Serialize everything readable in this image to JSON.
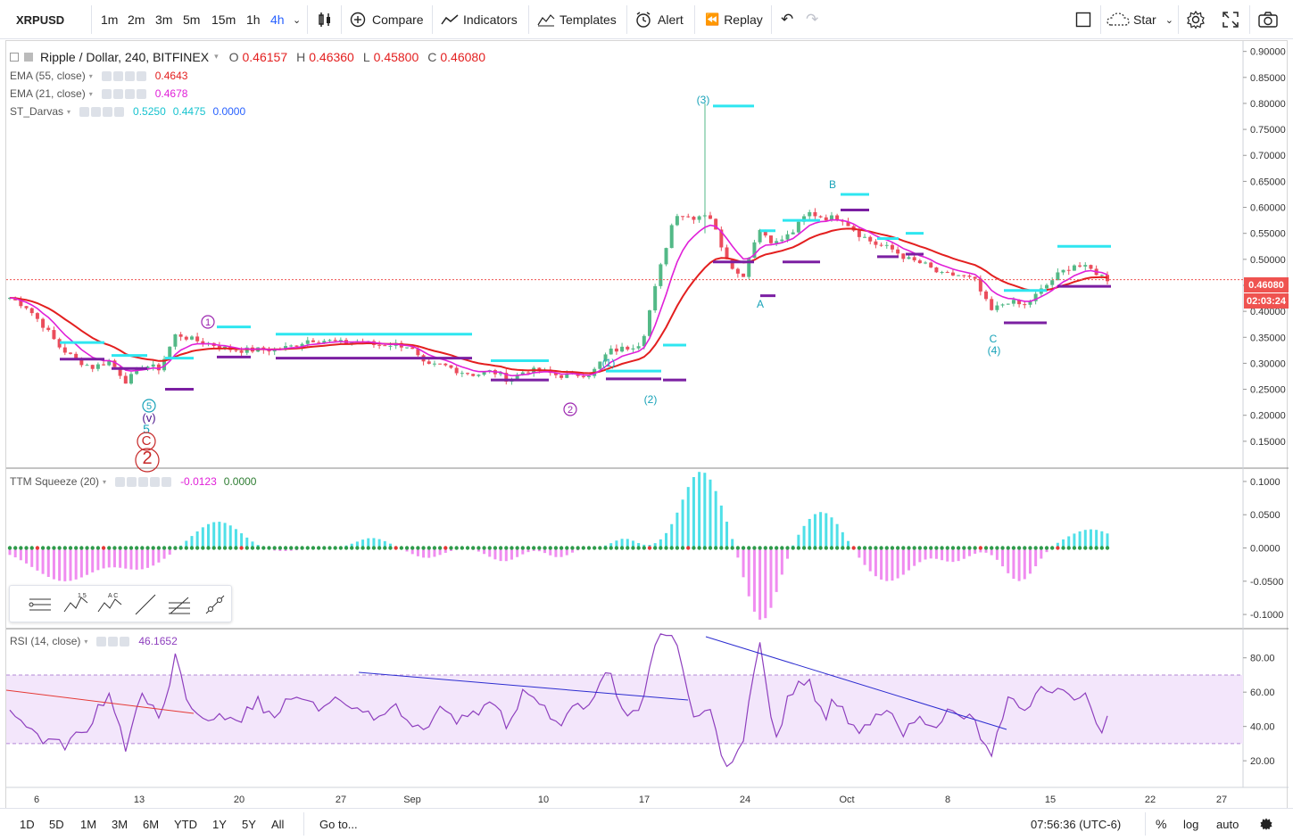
{
  "toolbar": {
    "symbol": "XRPUSD",
    "intervals": [
      "1m",
      "2m",
      "3m",
      "5m",
      "15m",
      "1h",
      "4h"
    ],
    "compare": "Compare",
    "indicators": "Indicators",
    "templates": "Templates",
    "alert": "Alert",
    "replay": "Replay",
    "star": "Star"
  },
  "legend": {
    "title": "Ripple / Dollar, 240, BITFINEX",
    "open_label": "O",
    "open": "0.46157",
    "high_label": "H",
    "high": "0.46360",
    "low_label": "L",
    "low": "0.45800",
    "close_label": "C",
    "close": "0.46080",
    "ema55_name": "EMA (55, close)",
    "ema55_value": "0.4643",
    "ema21_name": "EMA (21, close)",
    "ema21_value": "0.4678",
    "darvas_name": "ST_Darvas",
    "darvas_v1": "0.5250",
    "darvas_v2": "0.4475",
    "darvas_v3": "0.0000",
    "ttm_name": "TTM Squeeze (20)",
    "ttm_v1": "-0.0123",
    "ttm_v2": "0.0000",
    "rsi_name": "RSI (14, close)",
    "rsi_value": "46.1652"
  },
  "price_tags": {
    "last": "0.46080",
    "countdown": "02:03:24"
  },
  "wave_labels": {
    "w1": "1",
    "w2": "2",
    "wp1": "(1)",
    "wp2": "(2)",
    "wp3": "(3)",
    "wp4": "(4)",
    "A": "A",
    "B": "B",
    "C": "C",
    "w5": "5",
    "wv": "(v)",
    "w5b": "5",
    "wC": "C",
    "w2big": "2"
  },
  "bottombar": {
    "ranges": [
      "1D",
      "5D",
      "1M",
      "3M",
      "6M",
      "YTD",
      "1Y",
      "5Y",
      "All"
    ],
    "goto": "Go to...",
    "clock": "07:56:36 (UTC-6)",
    "pct": "%",
    "log": "log",
    "auto": "auto"
  },
  "colors": {
    "up": "#53b987",
    "down": "#eb4d5c",
    "ema55": "#e31f1f",
    "ema21": "#e020d8",
    "darvas_top": "#2ee6f0",
    "darvas_bottom": "#7b1fa2",
    "rsi": "#8e3fbe",
    "rsi_band": "#f3e6fb",
    "ttm_pos": "#4fe0e8",
    "ttm_neg": "#f08cf0",
    "wave_teal": "#17a2b8",
    "wave_purple": "#9c27b0"
  },
  "chart_data": [
    {
      "type": "candlestick",
      "title": "Ripple / Dollar, 240, BITFINEX",
      "ylabel": "",
      "y_ticks": [
        0.15,
        0.2,
        0.25,
        0.3,
        0.35,
        0.4,
        0.45,
        0.5,
        0.55,
        0.6,
        0.65,
        0.7,
        0.75,
        0.8,
        0.85,
        0.9
      ],
      "ylim": [
        0.1,
        0.92
      ],
      "x_ticks": [
        "6",
        "13",
        "20",
        "27",
        "Sep",
        "10",
        "17",
        "24",
        "Oct",
        "8",
        "15",
        "22",
        "27"
      ],
      "close_path": [
        [
          0.423,
          0.426
        ],
        [
          0.418,
          0.409
        ],
        [
          0.391,
          0.373
        ],
        [
          0.34,
          0.331
        ],
        [
          0.325,
          0.306
        ],
        [
          0.297,
          0.292
        ],
        [
          0.301,
          0.305
        ],
        [
          0.287,
          0.265
        ],
        [
          0.284,
          0.296
        ],
        [
          0.304,
          0.29
        ],
        [
          0.319,
          0.357
        ],
        [
          0.365,
          0.345
        ],
        [
          0.335,
          0.338
        ],
        [
          0.321,
          0.328
        ],
        [
          0.327,
          0.325
        ],
        [
          0.329,
          0.326
        ],
        [
          0.332,
          0.326
        ],
        [
          0.329,
          0.333
        ],
        [
          0.337,
          0.346
        ],
        [
          0.348,
          0.344
        ],
        [
          0.34,
          0.339
        ],
        [
          0.336,
          0.343
        ],
        [
          0.342,
          0.335
        ],
        [
          0.338,
          0.337
        ],
        [
          0.339,
          0.333
        ],
        [
          0.3,
          0.293
        ],
        [
          0.29,
          0.297
        ],
        [
          0.289,
          0.285
        ],
        [
          0.283,
          0.278
        ],
        [
          0.279,
          0.285
        ],
        [
          0.273,
          0.268
        ],
        [
          0.276,
          0.286
        ],
        [
          0.283,
          0.285
        ],
        [
          0.28,
          0.276
        ],
        [
          0.282,
          0.278
        ],
        [
          0.277,
          0.28
        ],
        [
          0.31,
          0.323
        ],
        [
          0.319,
          0.329
        ],
        [
          0.318,
          0.34
        ],
        [
          0.42,
          0.47
        ],
        [
          0.56,
          0.59
        ],
        [
          0.6,
          0.58
        ],
        [
          0.571,
          0.59
        ],
        [
          0.56,
          0.51
        ],
        [
          0.44,
          0.46
        ],
        [
          0.52,
          0.56
        ],
        [
          0.548,
          0.53
        ],
        [
          0.54,
          0.55
        ],
        [
          0.57,
          0.59
        ],
        [
          0.59,
          0.58
        ],
        [
          0.6,
          0.58
        ],
        [
          0.55,
          0.55
        ],
        [
          0.54,
          0.53
        ],
        [
          0.54,
          0.52
        ],
        [
          0.52,
          0.5
        ],
        [
          0.49,
          0.49
        ],
        [
          0.49,
          0.47
        ],
        [
          0.47,
          0.47
        ],
        [
          0.46,
          0.46
        ],
        [
          0.4,
          0.4
        ],
        [
          0.42,
          0.42
        ],
        [
          0.41,
          0.41
        ],
        [
          0.42,
          0.44
        ],
        [
          0.46,
          0.47
        ],
        [
          0.48,
          0.49
        ],
        [
          0.49,
          0.48
        ],
        [
          0.47,
          0.462
        ]
      ]
    },
    {
      "type": "bar",
      "title": "TTM Squeeze (20)",
      "y_ticks": [
        -0.1,
        -0.05,
        0.0,
        0.05,
        0.1
      ],
      "ylim": [
        -0.12,
        0.12
      ]
    },
    {
      "type": "line",
      "title": "RSI (14, close)",
      "y_ticks": [
        20,
        40,
        60,
        80
      ],
      "bands": [
        30,
        70
      ],
      "ylim": [
        5,
        97
      ],
      "last": 46.1652
    }
  ]
}
